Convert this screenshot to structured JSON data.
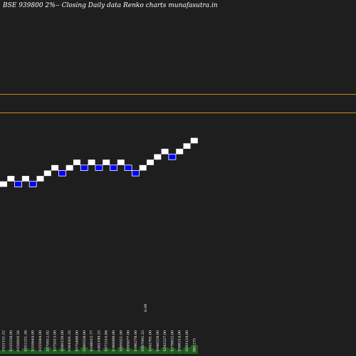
{
  "colors": {
    "background": "#1e1e1e",
    "up_brick": "#ffffff",
    "down_brick": "#0000ff",
    "level_line": "#c8861e",
    "volume": "#1f5e1f",
    "text": "#ffffff"
  },
  "chart_data": {
    "type": "renko",
    "title": "BSE 939800  2%-- Closing Daily data Renko  charts munafasutra.in",
    "brick_size_pct": 2,
    "ylim": [
      0,
      33
    ],
    "level_lines": [
      18,
      14.6
    ],
    "bricks": [
      {
        "dir": "up",
        "level": 1
      },
      {
        "dir": "up",
        "level": 2
      },
      {
        "dir": "down",
        "level": 1
      },
      {
        "dir": "up",
        "level": 2
      },
      {
        "dir": "down",
        "level": 1
      },
      {
        "dir": "up",
        "level": 2
      },
      {
        "dir": "up",
        "level": 3
      },
      {
        "dir": "up",
        "level": 4
      },
      {
        "dir": "down",
        "level": 3
      },
      {
        "dir": "up",
        "level": 4
      },
      {
        "dir": "up",
        "level": 5
      },
      {
        "dir": "down",
        "level": 4
      },
      {
        "dir": "up",
        "level": 5
      },
      {
        "dir": "down",
        "level": 4
      },
      {
        "dir": "up",
        "level": 5
      },
      {
        "dir": "down",
        "level": 4
      },
      {
        "dir": "up",
        "level": 5
      },
      {
        "dir": "down",
        "level": 4
      },
      {
        "dir": "down",
        "level": 3
      },
      {
        "dir": "up",
        "level": 4
      },
      {
        "dir": "up",
        "level": 5
      },
      {
        "dir": "up",
        "level": 6
      },
      {
        "dir": "up",
        "level": 7
      },
      {
        "dir": "down",
        "level": 6
      },
      {
        "dir": "up",
        "level": 7
      },
      {
        "dir": "up",
        "level": 8
      },
      {
        "dir": "up",
        "level": 9
      }
    ],
    "x_labels": [
      "1025151.52",
      "1035558.00",
      "1050920.56",
      "1051251.36",
      "1050644.00",
      "1055644.00",
      "1070812.92",
      "1075013.00",
      "1080159.00",
      "1064501.32",
      "1075488.00",
      "1080558.00",
      "1048015.77",
      "1065199.25",
      "1071510.84",
      "1080099.00",
      "1095021.00",
      "1095677.00",
      "1096278.00",
      "1097092.25",
      "1002791.00",
      "1046529.00",
      "1042527.00",
      "1079832.00",
      "1096314.00",
      "1083124.00",
      "961275"
    ],
    "annotations": [
      "6.09"
    ],
    "volume": [
      3,
      4,
      3,
      5,
      4,
      3,
      6,
      4,
      5,
      3,
      4,
      6,
      4,
      3,
      5,
      4,
      6,
      5,
      4,
      7,
      5,
      4,
      6,
      5,
      4,
      6,
      8
    ]
  }
}
